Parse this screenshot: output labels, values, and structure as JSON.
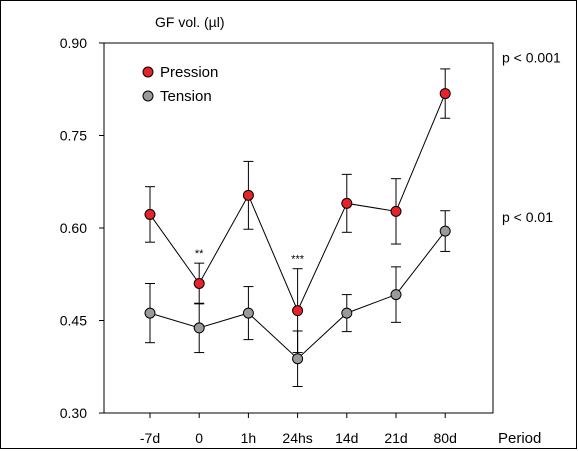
{
  "chart_data": {
    "type": "line",
    "ylabel": "GF vol. (µl)",
    "xlabel": "Period",
    "categories": [
      "-7d",
      "0",
      "1h",
      "24hs",
      "14d",
      "21d",
      "80d"
    ],
    "ylim": [
      0.3,
      0.9
    ],
    "yticks": [
      0.9,
      0.75,
      0.6,
      0.45,
      0.3
    ],
    "ytick_labels": [
      "0.90",
      "0.75",
      "0.60",
      "0.45",
      "0.30"
    ],
    "grid": false,
    "legend_placement": "top-left",
    "series": [
      {
        "name": "Pression",
        "color": "#e8222a",
        "values": [
          0.622,
          0.51,
          0.653,
          0.466,
          0.64,
          0.627,
          0.818
        ],
        "error": [
          0.045,
          0.033,
          0.055,
          0.068,
          0.047,
          0.053,
          0.04
        ]
      },
      {
        "name": "Tension",
        "color": "#9a9a9a",
        "values": [
          0.462,
          0.438,
          0.462,
          0.388,
          0.462,
          0.492,
          0.595
        ],
        "error": [
          0.048,
          0.04,
          0.043,
          0.045,
          0.03,
          0.045,
          0.033
        ]
      }
    ],
    "annotations": {
      "significance_markers": [
        {
          "category": "0",
          "text": "**"
        },
        {
          "category": "24hs",
          "text": "***"
        }
      ],
      "p_values": [
        {
          "series": "Pression",
          "text": "p < 0.001"
        },
        {
          "series": "Tension",
          "text": "p < 0.01"
        }
      ]
    }
  }
}
